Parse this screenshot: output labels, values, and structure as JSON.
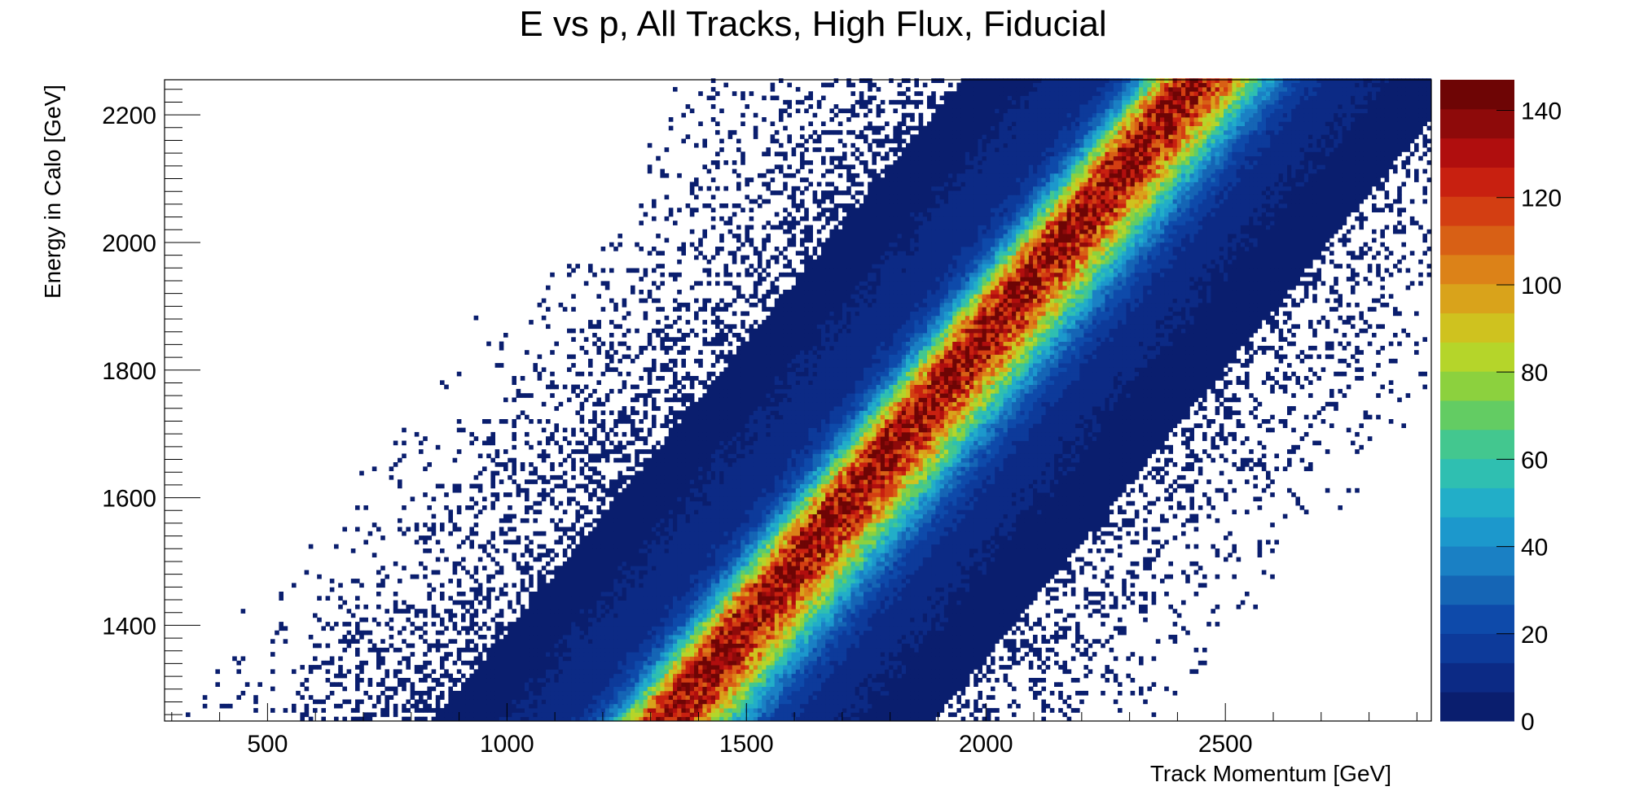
{
  "chart_data": {
    "type": "heatmap",
    "title": "E vs p, All Tracks, High Flux, Fiducial",
    "xlabel": "Track Momentum [GeV]",
    "ylabel": "Energy in Calo [GeV]",
    "xlim": [
      285,
      2930
    ],
    "ylim": [
      1250,
      2255
    ],
    "x_ticks": [
      500,
      1000,
      1500,
      2000,
      2500
    ],
    "y_ticks": [
      1400,
      1600,
      1800,
      2000,
      2200
    ],
    "z_ticks": [
      0,
      20,
      40,
      60,
      80,
      100,
      120,
      140
    ],
    "zlim": [
      0,
      147
    ],
    "grid": false,
    "legend": "color scale on right",
    "distribution": {
      "description_free_params": true,
      "ridge_line_slope_E_per_p": 0.909,
      "ridge_line_intercept_E": 45,
      "core_sigma_p": 65,
      "core_peak_counts": 125,
      "halo_sigma_p": 330,
      "halo_peak_counts": 13,
      "outer_density_inner_edge_p": [
        800,
        2550
      ],
      "ridge_points": [
        {
          "p": 1300,
          "E": 1255
        },
        {
          "p": 1500,
          "E": 1430
        },
        {
          "p": 1700,
          "E": 1600
        },
        {
          "p": 1900,
          "E": 1800
        },
        {
          "p": 2100,
          "E": 1990
        },
        {
          "p": 2300,
          "E": 2225
        }
      ]
    },
    "color_palette": [
      "#0a1e6e",
      "#0c2a85",
      "#0d3a9a",
      "#0e4aaa",
      "#1565b5",
      "#1a80c4",
      "#1c98cc",
      "#22aec8",
      "#2fbfb1",
      "#43c78f",
      "#63cc63",
      "#8cd13e",
      "#b5d52a",
      "#cfc21f",
      "#d9a31b",
      "#dc8218",
      "#d86015",
      "#d33e12",
      "#c82010",
      "#b00e0e",
      "#8e0a0a",
      "#6e0505"
    ]
  }
}
